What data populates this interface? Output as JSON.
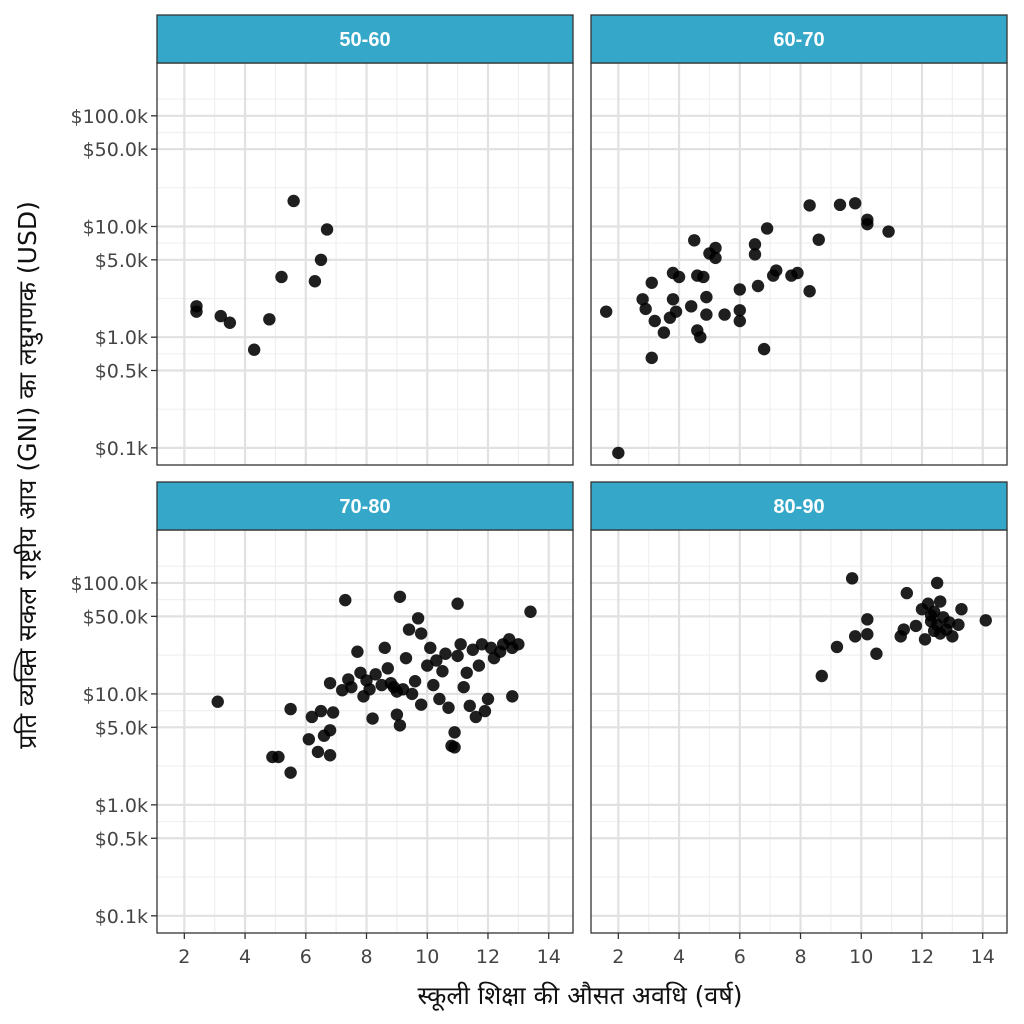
{
  "chart_data": {
    "type": "scatter",
    "xlabel": "स्कूली शिक्षा की औसत अवधि (वर्ष)",
    "ylabel": "प्रति व्यक्ति सकल राष्ट्रीय आय (GNI) का लघुगणक (USD)",
    "x_scale": "linear",
    "y_scale": "log10",
    "xlim": [
      1.1,
      14.8
    ],
    "ylim": [
      0.07,
      300
    ],
    "x_ticks": [
      2,
      4,
      6,
      8,
      10,
      12,
      14
    ],
    "x_tick_labels": [
      "2",
      "4",
      "6",
      "8",
      "10",
      "12",
      "14"
    ],
    "y_ticks": [
      0.1,
      0.5,
      1,
      5,
      10,
      50,
      100
    ],
    "y_tick_labels": [
      "$0.1k",
      "$0.5k",
      "$1.0k",
      "$5.0k",
      "$10.0k",
      "$50.0k",
      "$100.0k"
    ],
    "grid": true,
    "strip_color": "#35a7c9",
    "point_color": "#000000",
    "panels": [
      {
        "title": "50-60",
        "points": [
          {
            "x": 2.4,
            "y": 1.9
          },
          {
            "x": 2.4,
            "y": 1.7
          },
          {
            "x": 3.2,
            "y": 1.55
          },
          {
            "x": 3.5,
            "y": 1.35
          },
          {
            "x": 4.3,
            "y": 0.77
          },
          {
            "x": 4.8,
            "y": 1.45
          },
          {
            "x": 5.2,
            "y": 3.5
          },
          {
            "x": 5.6,
            "y": 17.0
          },
          {
            "x": 6.3,
            "y": 3.2
          },
          {
            "x": 6.5,
            "y": 5.0
          },
          {
            "x": 6.7,
            "y": 9.4
          }
        ]
      },
      {
        "title": "60-70",
        "points": [
          {
            "x": 1.6,
            "y": 1.7
          },
          {
            "x": 2.0,
            "y": 0.09
          },
          {
            "x": 2.8,
            "y": 2.2
          },
          {
            "x": 2.9,
            "y": 1.8
          },
          {
            "x": 3.1,
            "y": 0.65
          },
          {
            "x": 3.1,
            "y": 3.1
          },
          {
            "x": 3.2,
            "y": 1.4
          },
          {
            "x": 3.5,
            "y": 1.1
          },
          {
            "x": 3.7,
            "y": 1.5
          },
          {
            "x": 3.8,
            "y": 2.2
          },
          {
            "x": 3.8,
            "y": 3.8
          },
          {
            "x": 3.9,
            "y": 1.7
          },
          {
            "x": 4.0,
            "y": 3.5
          },
          {
            "x": 4.4,
            "y": 1.9
          },
          {
            "x": 4.5,
            "y": 7.5
          },
          {
            "x": 4.6,
            "y": 3.6
          },
          {
            "x": 4.6,
            "y": 1.15
          },
          {
            "x": 4.7,
            "y": 1.0
          },
          {
            "x": 4.8,
            "y": 3.5
          },
          {
            "x": 4.9,
            "y": 1.6
          },
          {
            "x": 4.9,
            "y": 2.3
          },
          {
            "x": 5.0,
            "y": 5.7
          },
          {
            "x": 5.2,
            "y": 6.4
          },
          {
            "x": 5.2,
            "y": 5.2
          },
          {
            "x": 5.5,
            "y": 1.6
          },
          {
            "x": 6.0,
            "y": 2.7
          },
          {
            "x": 6.0,
            "y": 1.4
          },
          {
            "x": 6.0,
            "y": 1.75
          },
          {
            "x": 6.5,
            "y": 5.6
          },
          {
            "x": 6.5,
            "y": 6.9
          },
          {
            "x": 6.6,
            "y": 2.9
          },
          {
            "x": 6.8,
            "y": 0.78
          },
          {
            "x": 6.9,
            "y": 9.6
          },
          {
            "x": 7.1,
            "y": 3.6
          },
          {
            "x": 7.2,
            "y": 4.0
          },
          {
            "x": 7.7,
            "y": 3.6
          },
          {
            "x": 7.9,
            "y": 3.8
          },
          {
            "x": 8.3,
            "y": 2.6
          },
          {
            "x": 8.3,
            "y": 15.5
          },
          {
            "x": 8.6,
            "y": 7.6
          },
          {
            "x": 9.3,
            "y": 15.7
          },
          {
            "x": 9.8,
            "y": 16.2
          },
          {
            "x": 10.2,
            "y": 11.5
          },
          {
            "x": 10.2,
            "y": 10.5
          },
          {
            "x": 10.9,
            "y": 9.0
          }
        ]
      },
      {
        "title": "70-80",
        "points": [
          {
            "x": 3.1,
            "y": 8.5
          },
          {
            "x": 4.9,
            "y": 2.7
          },
          {
            "x": 5.1,
            "y": 2.7
          },
          {
            "x": 5.5,
            "y": 1.95
          },
          {
            "x": 5.5,
            "y": 7.3
          },
          {
            "x": 6.1,
            "y": 3.9
          },
          {
            "x": 6.2,
            "y": 6.2
          },
          {
            "x": 6.4,
            "y": 3.0
          },
          {
            "x": 6.5,
            "y": 7.0
          },
          {
            "x": 6.6,
            "y": 4.2
          },
          {
            "x": 6.8,
            "y": 4.7
          },
          {
            "x": 6.8,
            "y": 2.8
          },
          {
            "x": 6.8,
            "y": 12.5
          },
          {
            "x": 6.9,
            "y": 6.8
          },
          {
            "x": 7.2,
            "y": 10.8
          },
          {
            "x": 7.3,
            "y": 70.0
          },
          {
            "x": 7.4,
            "y": 13.5
          },
          {
            "x": 7.5,
            "y": 11.5
          },
          {
            "x": 7.7,
            "y": 24.0
          },
          {
            "x": 7.8,
            "y": 15.5
          },
          {
            "x": 7.9,
            "y": 9.5
          },
          {
            "x": 8.0,
            "y": 13.2
          },
          {
            "x": 8.1,
            "y": 11.0
          },
          {
            "x": 8.2,
            "y": 6.0
          },
          {
            "x": 8.3,
            "y": 15.0
          },
          {
            "x": 8.5,
            "y": 12.0
          },
          {
            "x": 8.6,
            "y": 26.0
          },
          {
            "x": 8.7,
            "y": 17.0
          },
          {
            "x": 8.8,
            "y": 12.5
          },
          {
            "x": 8.9,
            "y": 11.5
          },
          {
            "x": 9.0,
            "y": 10.5
          },
          {
            "x": 9.0,
            "y": 6.5
          },
          {
            "x": 9.1,
            "y": 5.2
          },
          {
            "x": 9.1,
            "y": 75.0
          },
          {
            "x": 9.2,
            "y": 11.0
          },
          {
            "x": 9.3,
            "y": 21.0
          },
          {
            "x": 9.4,
            "y": 38.0
          },
          {
            "x": 9.5,
            "y": 10.0
          },
          {
            "x": 9.6,
            "y": 13.0
          },
          {
            "x": 9.7,
            "y": 48.0
          },
          {
            "x": 9.8,
            "y": 35.0
          },
          {
            "x": 9.8,
            "y": 8.0
          },
          {
            "x": 10.0,
            "y": 18.0
          },
          {
            "x": 10.1,
            "y": 26.0
          },
          {
            "x": 10.2,
            "y": 12.0
          },
          {
            "x": 10.3,
            "y": 20.0
          },
          {
            "x": 10.4,
            "y": 9.0
          },
          {
            "x": 10.5,
            "y": 16.0
          },
          {
            "x": 10.6,
            "y": 23.0
          },
          {
            "x": 10.7,
            "y": 7.5
          },
          {
            "x": 10.8,
            "y": 3.4
          },
          {
            "x": 10.9,
            "y": 4.5
          },
          {
            "x": 10.9,
            "y": 3.3
          },
          {
            "x": 11.0,
            "y": 65.0
          },
          {
            "x": 11.0,
            "y": 22.0
          },
          {
            "x": 11.1,
            "y": 28.0
          },
          {
            "x": 11.2,
            "y": 11.5
          },
          {
            "x": 11.3,
            "y": 15.5
          },
          {
            "x": 11.4,
            "y": 7.8
          },
          {
            "x": 11.5,
            "y": 25.0
          },
          {
            "x": 11.6,
            "y": 6.2
          },
          {
            "x": 11.7,
            "y": 18.0
          },
          {
            "x": 11.8,
            "y": 28.0
          },
          {
            "x": 11.9,
            "y": 7.0
          },
          {
            "x": 12.0,
            "y": 9.0
          },
          {
            "x": 12.1,
            "y": 26.0
          },
          {
            "x": 12.2,
            "y": 21.0
          },
          {
            "x": 12.4,
            "y": 24.0
          },
          {
            "x": 12.5,
            "y": 28.0
          },
          {
            "x": 12.7,
            "y": 31.0
          },
          {
            "x": 12.8,
            "y": 9.5
          },
          {
            "x": 12.8,
            "y": 26.0
          },
          {
            "x": 13.0,
            "y": 28.0
          },
          {
            "x": 13.4,
            "y": 55.0
          }
        ]
      },
      {
        "title": "80-90",
        "points": [
          {
            "x": 8.7,
            "y": 14.5
          },
          {
            "x": 9.2,
            "y": 26.5
          },
          {
            "x": 9.7,
            "y": 110.0
          },
          {
            "x": 9.8,
            "y": 33.0
          },
          {
            "x": 10.2,
            "y": 34.5
          },
          {
            "x": 10.2,
            "y": 47.0
          },
          {
            "x": 10.5,
            "y": 23.0
          },
          {
            "x": 11.3,
            "y": 33.0
          },
          {
            "x": 11.4,
            "y": 38.0
          },
          {
            "x": 11.5,
            "y": 81.0
          },
          {
            "x": 11.8,
            "y": 41.0
          },
          {
            "x": 12.0,
            "y": 58.0
          },
          {
            "x": 12.1,
            "y": 31.0
          },
          {
            "x": 12.2,
            "y": 65.0
          },
          {
            "x": 12.3,
            "y": 45.0
          },
          {
            "x": 12.3,
            "y": 51.0
          },
          {
            "x": 12.4,
            "y": 37.0
          },
          {
            "x": 12.4,
            "y": 55.0
          },
          {
            "x": 12.5,
            "y": 100.0
          },
          {
            "x": 12.5,
            "y": 42.0
          },
          {
            "x": 12.6,
            "y": 68.0
          },
          {
            "x": 12.6,
            "y": 35.0
          },
          {
            "x": 12.7,
            "y": 49.0
          },
          {
            "x": 12.8,
            "y": 38.0
          },
          {
            "x": 12.9,
            "y": 44.0
          },
          {
            "x": 13.0,
            "y": 33.0
          },
          {
            "x": 13.2,
            "y": 42.0
          },
          {
            "x": 13.3,
            "y": 58.0
          },
          {
            "x": 14.1,
            "y": 46.0
          }
        ]
      }
    ]
  }
}
